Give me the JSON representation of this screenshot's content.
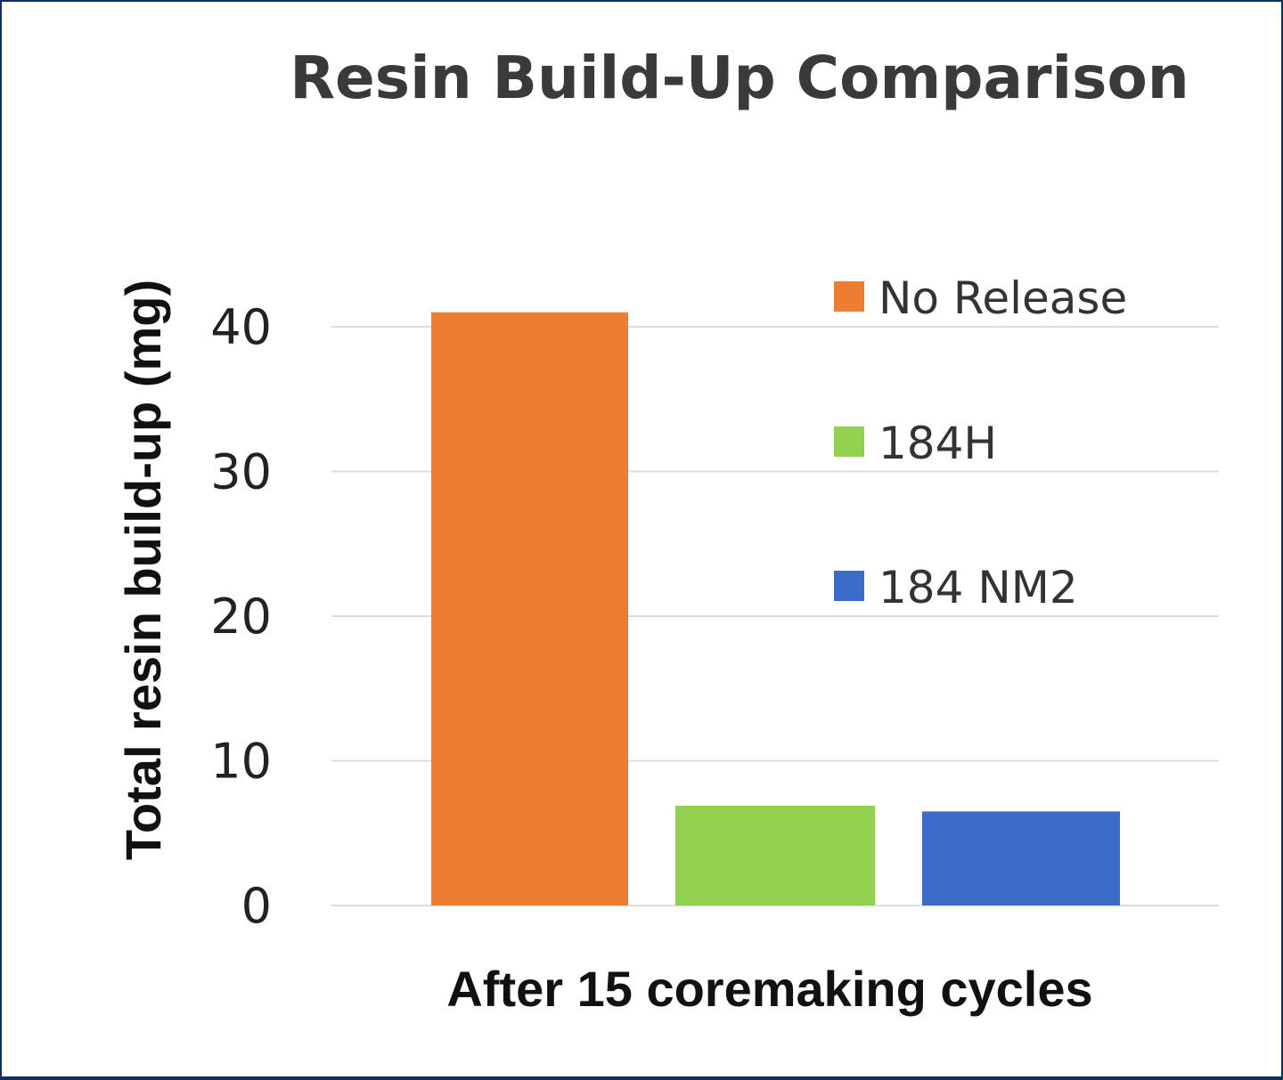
{
  "chart_data": {
    "type": "bar",
    "title": "Resin Build-Up Comparison",
    "xlabel": "After 15 coremaking cycles",
    "ylabel": "Total resin build-up (mg)",
    "ylim": [
      0,
      40
    ],
    "yticks": [
      "0",
      "10",
      "20",
      "30",
      "40"
    ],
    "grid": true,
    "legend_position": "top-right",
    "categories": [
      "After 15 coremaking cycles"
    ],
    "series": [
      {
        "name": "No Release",
        "values": [
          41
        ],
        "color": "#ed7d31"
      },
      {
        "name": "184H",
        "values": [
          6.9
        ],
        "color": "#92d050"
      },
      {
        "name": "184 NM2",
        "values": [
          6.5
        ],
        "color": "#3a6cc8"
      }
    ]
  }
}
